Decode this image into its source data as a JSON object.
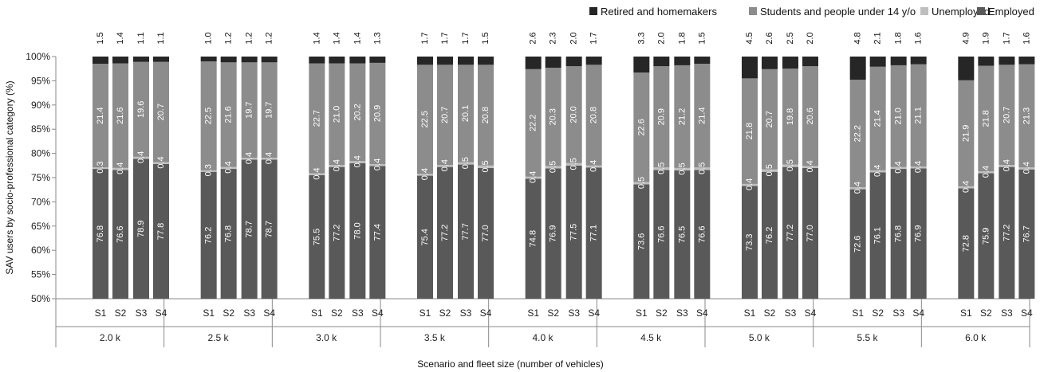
{
  "chart_data": {
    "type": "bar",
    "stacked": true,
    "orientation": "vertical",
    "title": "",
    "ylabel": "SAV users by socio-professional category (%)",
    "xlabel": "Scenario and fleet size (number of vehicles)",
    "ylim": [
      50,
      100
    ],
    "yticks": [
      "50%",
      "55%",
      "60%",
      "65%",
      "70%",
      "75%",
      "80%",
      "85%",
      "90%",
      "95%",
      "100%"
    ],
    "grid": false,
    "legend_position": "top-right",
    "scenarios": [
      "S1",
      "S2",
      "S3",
      "S4"
    ],
    "groups": [
      "2.0 k",
      "2.5 k",
      "3.0 k",
      "3.5 k",
      "4.0 k",
      "4.5 k",
      "5.0 k",
      "5.5 k",
      "6.0 k"
    ],
    "series": [
      {
        "name": "Employed",
        "color": "#595959",
        "labels": [
          [
            "76.8",
            "76.6",
            "78.9",
            "77.8"
          ],
          [
            "76.2",
            "76.8",
            "78.7",
            "78.7"
          ],
          [
            "75.5",
            "77.2",
            "78.0",
            "77.4"
          ],
          [
            "75.4",
            "77.2",
            "77.7",
            "77.0"
          ],
          [
            "74.8",
            "76.9",
            "77.5",
            "77.1"
          ],
          [
            "73.6",
            "76.6",
            "76.5",
            "76.6"
          ],
          [
            "73.3",
            "76.2",
            "77.2",
            "77.0"
          ],
          [
            "72.6",
            "76.1",
            "76.8",
            "76.9"
          ],
          [
            "72.8",
            "75.9",
            "77.2",
            "76.7"
          ]
        ]
      },
      {
        "name": "Unemployed",
        "color": "#bfbfbf",
        "labels": [
          [
            "0.3",
            "0.4",
            "0.4",
            "0.4"
          ],
          [
            "0.3",
            "0.4",
            "0.4",
            "0.4"
          ],
          [
            "0.4",
            "0.4",
            "0.4",
            "0.4"
          ],
          [
            "0.4",
            "0.4",
            "0.5",
            "0.5"
          ],
          [
            "0.4",
            "0.5",
            "0.5",
            "0.4"
          ],
          [
            "0.5",
            "0.5",
            "0.5",
            "0.5"
          ],
          [
            "0.4",
            "0.5",
            "0.5",
            "0.4"
          ],
          [
            "0.4",
            "0.4",
            "0.4",
            "0.4"
          ],
          [
            "0.4",
            "0.4",
            "0.4",
            "0.4"
          ]
        ]
      },
      {
        "name": "Students and people under 14 y/o",
        "color": "#8c8c8c",
        "labels": [
          [
            "21.4",
            "21.6",
            "19.6",
            "20.7"
          ],
          [
            "22.5",
            "21.6",
            "19.7",
            "19.7"
          ],
          [
            "22.7",
            "21.0",
            "20.2",
            "20.9"
          ],
          [
            "22.5",
            "20.7",
            "20.1",
            "20.8"
          ],
          [
            "22.2",
            "20.3",
            "20.0",
            "20.8"
          ],
          [
            "22.6",
            "20.9",
            "21.2",
            "21.4"
          ],
          [
            "21.8",
            "20.7",
            "19.8",
            "20.6"
          ],
          [
            "22.2",
            "21.4",
            "21.0",
            "21.1"
          ],
          [
            "21.9",
            "21.8",
            "20.7",
            "21.3"
          ]
        ]
      },
      {
        "name": "Retired and homemakers",
        "color": "#262626",
        "labels": [
          [
            "1.5",
            "1.4",
            "1.1",
            "1.1"
          ],
          [
            "1.0",
            "1.2",
            "1.2",
            "1.2"
          ],
          [
            "1.4",
            "1.4",
            "1.4",
            "1.3"
          ],
          [
            "1.7",
            "1.7",
            "1.7",
            "1.5"
          ],
          [
            "2.6",
            "2.3",
            "2.0",
            "1.7"
          ],
          [
            "3.3",
            "2.0",
            "1.8",
            "1.5"
          ],
          [
            "4.5",
            "2.6",
            "2.5",
            "2.0"
          ],
          [
            "4.8",
            "2.1",
            "1.8",
            "1.6"
          ],
          [
            "4.9",
            "1.9",
            "1.7",
            "1.6"
          ]
        ]
      }
    ],
    "unemployed_label_display": [
      [
        "0|3",
        "0.4",
        "0.4",
        "0.4"
      ],
      [
        "0|3",
        "0.4",
        "0.4",
        "0.4"
      ],
      [
        "0.4",
        "0.4",
        "0.4",
        "0.4"
      ],
      [
        "0.4",
        "0.4",
        "0.5",
        "0.5"
      ],
      [
        "0.4",
        "0.5",
        "0.5",
        "0.4"
      ],
      [
        "0.5",
        "0.5",
        "0.5",
        "0.5"
      ],
      [
        "0.4",
        "0.5",
        "0.5",
        "0.4"
      ],
      [
        "0.4",
        "0.4",
        "0.4",
        "0.4"
      ],
      [
        "0.4",
        "0.4",
        "0.4",
        "0.4"
      ]
    ],
    "legend_order": [
      "Retired and homemakers",
      "Students and people under 14 y/o",
      "Unemployed",
      "Employed"
    ]
  }
}
